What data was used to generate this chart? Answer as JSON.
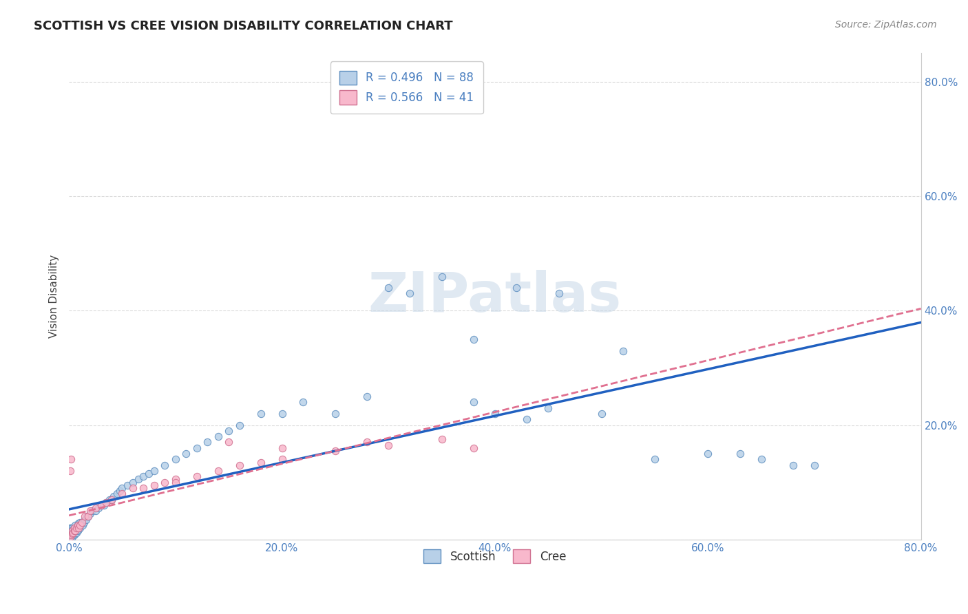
{
  "title": "SCOTTISH VS CREE VISION DISABILITY CORRELATION CHART",
  "source": "Source: ZipAtlas.com",
  "ylabel": "Vision Disability",
  "xlim": [
    0.0,
    0.8
  ],
  "ylim": [
    0.0,
    0.85
  ],
  "scottish_face_color": "#b8d0e8",
  "scottish_edge_color": "#6090c0",
  "scottish_line_color": "#2060c0",
  "cree_face_color": "#f8b8cc",
  "cree_edge_color": "#d07090",
  "cree_line_color": "#e07090",
  "legend_text_color": "#4a7fc0",
  "watermark_color": "#c8d8e8",
  "title_color": "#222222",
  "source_color": "#888888",
  "axis_tick_color": "#4a7fc0",
  "grid_color": "#cccccc",
  "R_scottish": 0.496,
  "N_scottish": 88,
  "R_cree": 0.566,
  "N_cree": 41,
  "scottish_x": [
    0.001,
    0.001,
    0.001,
    0.001,
    0.001,
    0.002,
    0.002,
    0.002,
    0.002,
    0.003,
    0.003,
    0.003,
    0.003,
    0.004,
    0.004,
    0.004,
    0.005,
    0.005,
    0.005,
    0.006,
    0.006,
    0.006,
    0.007,
    0.007,
    0.008,
    0.008,
    0.009,
    0.009,
    0.01,
    0.01,
    0.011,
    0.012,
    0.013,
    0.014,
    0.015,
    0.016,
    0.017,
    0.018,
    0.02,
    0.022,
    0.025,
    0.028,
    0.03,
    0.033,
    0.035,
    0.038,
    0.04,
    0.042,
    0.045,
    0.048,
    0.05,
    0.055,
    0.06,
    0.065,
    0.07,
    0.075,
    0.08,
    0.09,
    0.1,
    0.11,
    0.12,
    0.13,
    0.14,
    0.15,
    0.16,
    0.18,
    0.2,
    0.22,
    0.25,
    0.28,
    0.3,
    0.32,
    0.35,
    0.38,
    0.4,
    0.43,
    0.45,
    0.5,
    0.55,
    0.6,
    0.63,
    0.65,
    0.68,
    0.7,
    0.38,
    0.42,
    0.46,
    0.52
  ],
  "scottish_y": [
    0.005,
    0.008,
    0.01,
    0.015,
    0.02,
    0.005,
    0.01,
    0.015,
    0.02,
    0.005,
    0.01,
    0.015,
    0.02,
    0.008,
    0.012,
    0.018,
    0.008,
    0.013,
    0.02,
    0.01,
    0.015,
    0.025,
    0.012,
    0.02,
    0.015,
    0.025,
    0.018,
    0.028,
    0.02,
    0.03,
    0.025,
    0.03,
    0.025,
    0.03,
    0.035,
    0.035,
    0.04,
    0.04,
    0.045,
    0.05,
    0.05,
    0.055,
    0.06,
    0.06,
    0.065,
    0.07,
    0.07,
    0.075,
    0.08,
    0.085,
    0.09,
    0.095,
    0.1,
    0.105,
    0.11,
    0.115,
    0.12,
    0.13,
    0.14,
    0.15,
    0.16,
    0.17,
    0.18,
    0.19,
    0.2,
    0.22,
    0.22,
    0.24,
    0.22,
    0.25,
    0.44,
    0.43,
    0.46,
    0.24,
    0.22,
    0.21,
    0.23,
    0.22,
    0.14,
    0.15,
    0.15,
    0.14,
    0.13,
    0.13,
    0.35,
    0.44,
    0.43,
    0.33
  ],
  "cree_x": [
    0.001,
    0.001,
    0.002,
    0.002,
    0.003,
    0.003,
    0.004,
    0.005,
    0.005,
    0.006,
    0.007,
    0.008,
    0.009,
    0.01,
    0.012,
    0.015,
    0.018,
    0.02,
    0.025,
    0.03,
    0.035,
    0.04,
    0.05,
    0.06,
    0.07,
    0.08,
    0.09,
    0.1,
    0.12,
    0.14,
    0.16,
    0.18,
    0.2,
    0.25,
    0.3,
    0.35,
    0.38,
    0.2,
    0.1,
    0.15,
    0.28
  ],
  "cree_y": [
    0.005,
    0.12,
    0.008,
    0.14,
    0.01,
    0.015,
    0.012,
    0.015,
    0.02,
    0.015,
    0.02,
    0.025,
    0.02,
    0.025,
    0.03,
    0.04,
    0.04,
    0.05,
    0.055,
    0.06,
    0.065,
    0.07,
    0.08,
    0.09,
    0.09,
    0.095,
    0.1,
    0.105,
    0.11,
    0.12,
    0.13,
    0.135,
    0.14,
    0.155,
    0.165,
    0.175,
    0.16,
    0.16,
    0.1,
    0.17,
    0.17
  ]
}
